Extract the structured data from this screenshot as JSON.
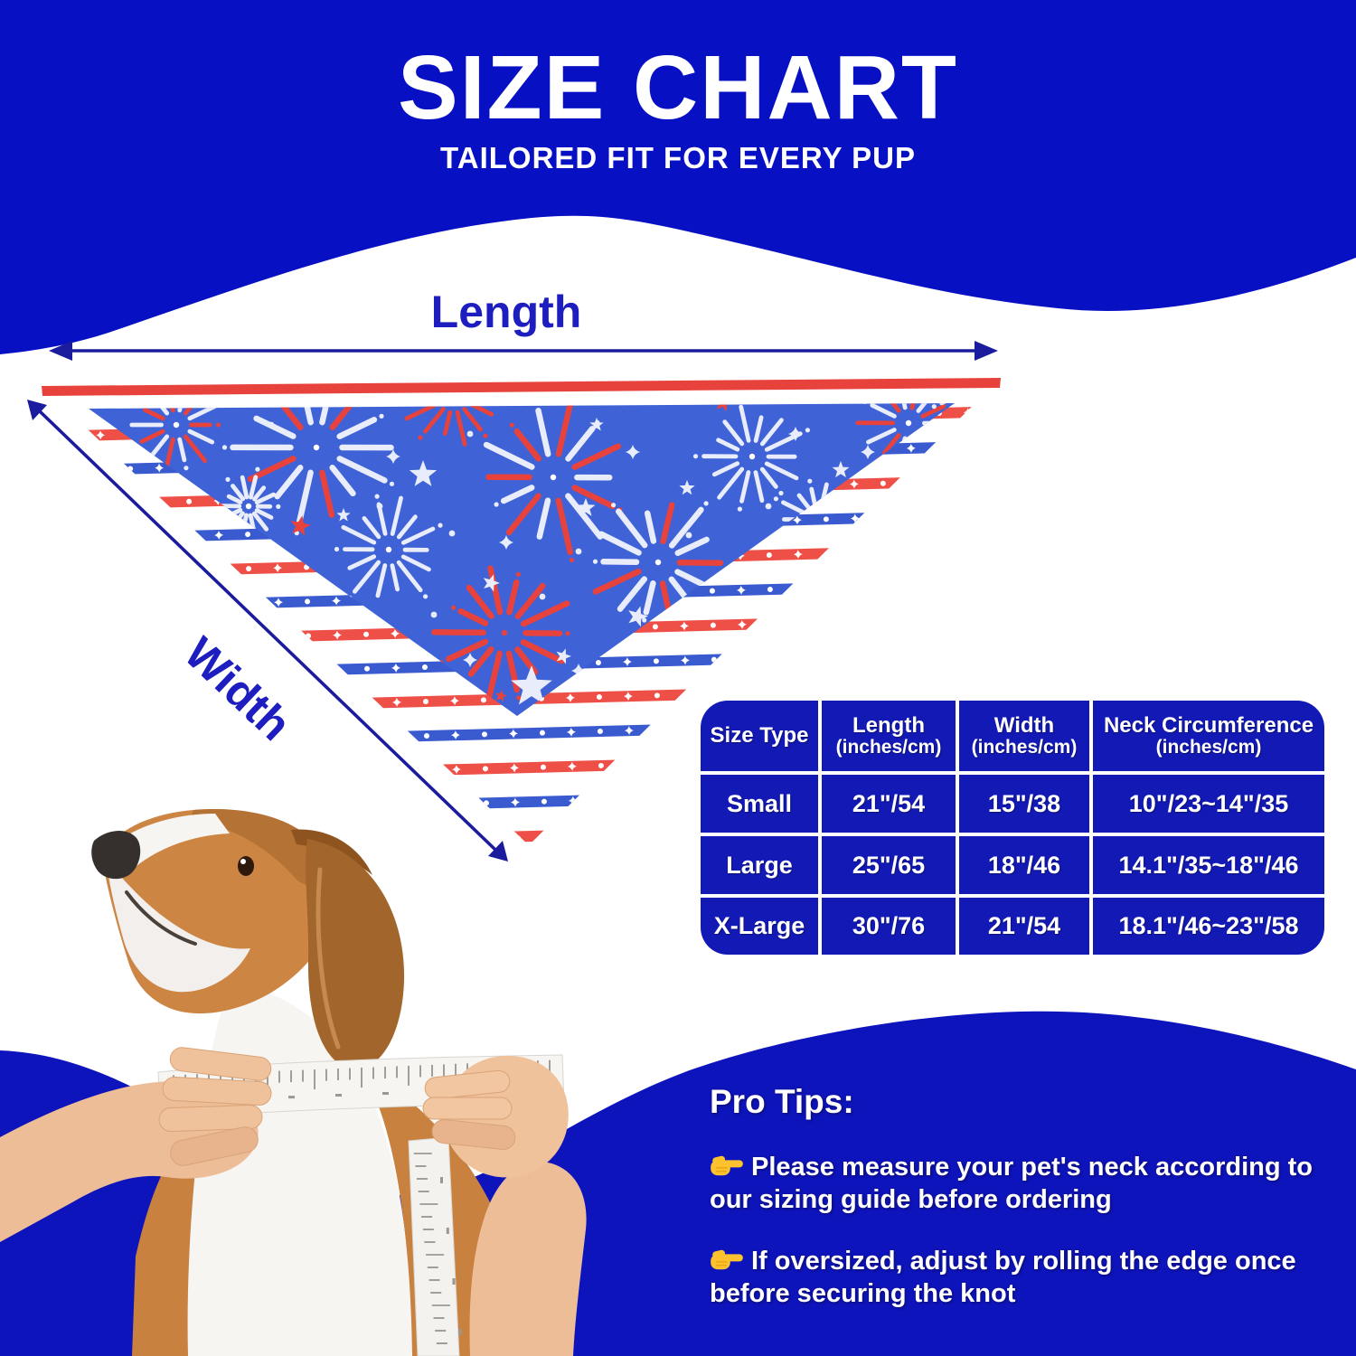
{
  "header": {
    "title": "SIZE CHART",
    "subtitle": "TAILORED FIT FOR EVERY PUP"
  },
  "diagram": {
    "length_label": "Length",
    "width_label": "Width",
    "product": "triangle bandana with fireworks and stars pattern",
    "length_arrow_icon": "double-headed-horizontal-arrow-icon",
    "width_arrow_icon": "double-headed-diagonal-arrow-icon"
  },
  "size_table": {
    "columns": [
      {
        "title": "Size Type",
        "sub": ""
      },
      {
        "title": "Length",
        "sub": "(inches/cm)"
      },
      {
        "title": "Width",
        "sub": "(inches/cm)"
      },
      {
        "title": "Neck Circumference",
        "sub": "(inches/cm)"
      }
    ],
    "rows": [
      [
        "Small",
        "21\"/54",
        "15\"/38",
        "10\"/23~14\"/35"
      ],
      [
        "Large",
        "25\"/65",
        "18\"/46",
        "14.1\"/35~18\"/46"
      ],
      [
        "X-Large",
        "30\"/76",
        "21\"/54",
        "18.1\"/46~23\"/58"
      ]
    ]
  },
  "chart_data": {
    "type": "table",
    "title": "SIZE CHART",
    "columns": [
      "Size Type",
      "Length (inches/cm)",
      "Width (inches/cm)",
      "Neck Circumference (inches/cm)"
    ],
    "rows": [
      [
        "Small",
        "21\"/54",
        "15\"/38",
        "10\"/23~14\"/35"
      ],
      [
        "Large",
        "25\"/65",
        "18\"/46",
        "14.1\"/35~18\"/46"
      ],
      [
        "X-Large",
        "30\"/76",
        "21\"/54",
        "18.1\"/46~23\"/58"
      ]
    ]
  },
  "pro_tips": {
    "heading": "Pro Tips:",
    "tips": [
      {
        "icon": "pointing-right-icon",
        "text": "Please measure your pet's neck according to our sizing guide before ordering"
      },
      {
        "icon": "pointing-right-icon",
        "text": "If oversized, adjust by rolling the edge once before securing the knot"
      }
    ]
  },
  "photo": {
    "description": "beagle dog having neck measured with a white measuring tape held by two hands"
  },
  "colors": {
    "header_blue": "#0810c4",
    "footer_blue": "#0e14bc",
    "table_blue": "#1219b4",
    "bandana_blue": "#3f63d7",
    "bandana_red": "#e7423b",
    "stripe_red": "#ee4f47",
    "stripe_blue": "#3a5bd0",
    "arrow_navy": "#1b1b9e",
    "label_blue": "#1d1dc0"
  }
}
